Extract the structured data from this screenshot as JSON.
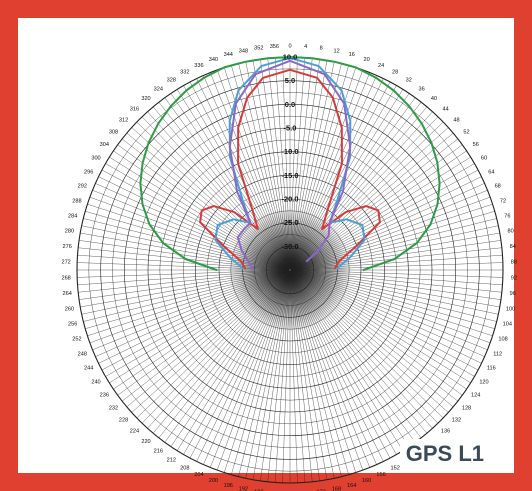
{
  "band_label": "GPS L1",
  "colors": {
    "frame": "#e0402f",
    "grid": "#222222",
    "label": "#3b4a57"
  },
  "chart_data": {
    "type": "line",
    "chart_kind": "polar-antenna-pattern",
    "title": "",
    "angle_unit": "degrees",
    "angle_tick_step": 4,
    "angle_direction": "clockwise-from-top",
    "radial_range": [
      -35,
      10
    ],
    "radial_ticks": [
      10.0,
      5.0,
      0.0,
      -5.0,
      -10.0,
      -15.0,
      -20.0,
      -25.0,
      -30.0
    ],
    "radial_tick_labels": [
      "10.0",
      "5.0",
      "0.0",
      "-5.0",
      "-10.0",
      "-15.0",
      "-20.0",
      "-25.0",
      "-30.0"
    ],
    "grid": true,
    "series": [
      {
        "color": "#2e9b47",
        "points": [
          [
            -90,
            -19.5
          ],
          [
            -84,
            -12.8
          ],
          [
            -78,
            -7.6
          ],
          [
            -72,
            -3.8
          ],
          [
            -66,
            -0.9
          ],
          [
            -60,
            1.5
          ],
          [
            -54,
            3.5
          ],
          [
            -48,
            5.2
          ],
          [
            -42,
            6.6
          ],
          [
            -36,
            7.8
          ],
          [
            -30,
            8.8
          ],
          [
            -24,
            9.5
          ],
          [
            -18,
            10.0
          ],
          [
            -12,
            10.0
          ],
          [
            -6,
            10.0
          ],
          [
            0,
            10.0
          ],
          [
            6,
            10.0
          ],
          [
            12,
            10.0
          ],
          [
            18,
            10.0
          ],
          [
            24,
            9.5
          ],
          [
            30,
            8.8
          ],
          [
            36,
            7.8
          ],
          [
            42,
            6.6
          ],
          [
            48,
            5.2
          ],
          [
            54,
            3.5
          ],
          [
            60,
            1.5
          ],
          [
            66,
            -0.9
          ],
          [
            72,
            -3.8
          ],
          [
            78,
            -7.6
          ],
          [
            84,
            -12.8
          ],
          [
            90,
            -19.5
          ]
        ]
      },
      {
        "color": "#d63a3a",
        "points": [
          [
            -88,
            -25.5
          ],
          [
            -80,
            -24.5
          ],
          [
            -70,
            -20
          ],
          [
            -62,
            -13.5
          ],
          [
            -56,
            -12.5
          ],
          [
            -50,
            -14
          ],
          [
            -44,
            -18
          ],
          [
            -38,
            -24
          ],
          [
            -32,
            -20
          ],
          [
            -26,
            -10
          ],
          [
            -20,
            -3
          ],
          [
            -14,
            2.5
          ],
          [
            -8,
            6
          ],
          [
            0,
            7.3
          ],
          [
            8,
            6
          ],
          [
            14,
            2.5
          ],
          [
            20,
            -3
          ],
          [
            26,
            -10
          ],
          [
            32,
            -20
          ],
          [
            38,
            -24
          ],
          [
            44,
            -18
          ],
          [
            50,
            -14
          ],
          [
            56,
            -12.5
          ],
          [
            62,
            -13.5
          ],
          [
            70,
            -20
          ],
          [
            80,
            -24.5
          ],
          [
            88,
            -25.5
          ]
        ]
      },
      {
        "color": "#4a9fd6",
        "points": [
          [
            -88,
            -25
          ],
          [
            -78,
            -22
          ],
          [
            -68,
            -18
          ],
          [
            -58,
            -17
          ],
          [
            -48,
            -19
          ],
          [
            -40,
            -22
          ],
          [
            -34,
            -17
          ],
          [
            -28,
            -8
          ],
          [
            -22,
            -1
          ],
          [
            -16,
            4.5
          ],
          [
            -8,
            8.5
          ],
          [
            0,
            9.8
          ],
          [
            8,
            8.5
          ],
          [
            16,
            4.5
          ],
          [
            22,
            -1
          ],
          [
            28,
            -8
          ],
          [
            34,
            -17
          ],
          [
            40,
            -22
          ],
          [
            48,
            -19
          ],
          [
            58,
            -17
          ],
          [
            68,
            -18
          ],
          [
            78,
            -22
          ],
          [
            88,
            -25
          ]
        ]
      },
      {
        "color": "#8a68c9",
        "points": [
          [
            -88,
            -27
          ],
          [
            -78,
            -26
          ],
          [
            -68,
            -24
          ],
          [
            -58,
            -22
          ],
          [
            -48,
            -22
          ],
          [
            -40,
            -22
          ],
          [
            -34,
            -15
          ],
          [
            -26,
            -6
          ],
          [
            -18,
            2
          ],
          [
            -10,
            7
          ],
          [
            0,
            9.2
          ],
          [
            10,
            7
          ],
          [
            18,
            2
          ],
          [
            26,
            -6
          ],
          [
            34,
            -15
          ],
          [
            40,
            -22
          ],
          [
            48,
            -24
          ],
          [
            56,
            -28
          ],
          [
            62,
            -31
          ]
        ]
      },
      {
        "color": "#5fa8dc",
        "points": [
          [
            -90,
            -35
          ],
          [
            -45,
            -35
          ],
          [
            0,
            -35
          ],
          [
            45,
            -35
          ],
          [
            90,
            -35
          ]
        ]
      }
    ]
  }
}
